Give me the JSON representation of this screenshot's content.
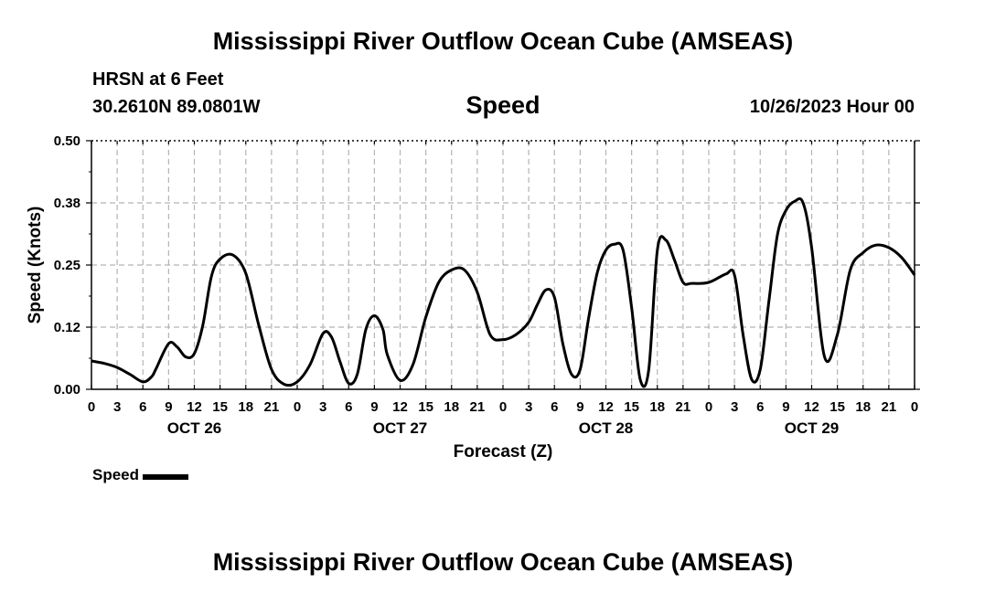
{
  "header": {
    "title": "Mississippi River Outflow Ocean Cube (AMSEAS)",
    "station": "HRSN at 6 Feet",
    "coords": "30.2610N  89.0801W",
    "variable": "Speed",
    "run_time": "10/26/2023 Hour 00"
  },
  "footer": {
    "title": "Mississippi River Outflow Ocean Cube (AMSEAS)"
  },
  "legend": {
    "label": "Speed"
  },
  "chart_data": {
    "type": "line",
    "title": "Speed",
    "xlabel": "Forecast (Z)",
    "ylabel": "Speed (Knots)",
    "ylim": [
      0,
      0.5
    ],
    "xlim": [
      0,
      96
    ],
    "y_ticks": [
      "0.00",
      "0.12",
      "0.25",
      "0.38",
      "0.50"
    ],
    "x_tick_labels": [
      "0",
      "3",
      "6",
      "9",
      "12",
      "15",
      "18",
      "21",
      "0",
      "3",
      "6",
      "9",
      "12",
      "15",
      "18",
      "21",
      "0",
      "3",
      "6",
      "9",
      "12",
      "15",
      "18",
      "21",
      "0",
      "3",
      "6",
      "9",
      "12",
      "15",
      "18",
      "21",
      "0"
    ],
    "day_labels": [
      "OCT 26",
      "OCT 27",
      "OCT 28",
      "OCT 29"
    ],
    "grid": true,
    "legend_position": "bottom-left",
    "series": [
      {
        "name": "Speed",
        "color": "#000000",
        "x": [
          0,
          1.5,
          3,
          4.5,
          6,
          7,
          7.5,
          9,
          10,
          11,
          12,
          13,
          14,
          15,
          16.5,
          18,
          19.5,
          21,
          22.5,
          24,
          25.5,
          27,
          28,
          29,
          30,
          31,
          32,
          33,
          34,
          34.5,
          36,
          37.5,
          39,
          40.5,
          42,
          43.5,
          45,
          46.5,
          48,
          49.5,
          51,
          52,
          53,
          54,
          55,
          56,
          57,
          58,
          59,
          60,
          61,
          62,
          63,
          64,
          65,
          66,
          67,
          68,
          69,
          70,
          72,
          74,
          75,
          76,
          77,
          78,
          79,
          80,
          81,
          82,
          83,
          84,
          85.5,
          87,
          88.5,
          90,
          91.5,
          93,
          94.5,
          96
        ],
        "y": [
          0.057,
          0.052,
          0.044,
          0.03,
          0.015,
          0.025,
          0.04,
          0.092,
          0.085,
          0.065,
          0.072,
          0.13,
          0.228,
          0.262,
          0.27,
          0.233,
          0.13,
          0.04,
          0.01,
          0.015,
          0.05,
          0.112,
          0.105,
          0.055,
          0.012,
          0.03,
          0.12,
          0.148,
          0.12,
          0.07,
          0.018,
          0.05,
          0.145,
          0.215,
          0.24,
          0.24,
          0.195,
          0.11,
          0.1,
          0.11,
          0.135,
          0.17,
          0.2,
          0.185,
          0.09,
          0.03,
          0.04,
          0.145,
          0.235,
          0.28,
          0.292,
          0.28,
          0.165,
          0.02,
          0.04,
          0.28,
          0.3,
          0.26,
          0.215,
          0.213,
          0.215,
          0.232,
          0.23,
          0.11,
          0.02,
          0.04,
          0.175,
          0.31,
          0.36,
          0.378,
          0.375,
          0.285,
          0.065,
          0.11,
          0.24,
          0.275,
          0.29,
          0.285,
          0.265,
          0.23
        ]
      }
    ]
  }
}
